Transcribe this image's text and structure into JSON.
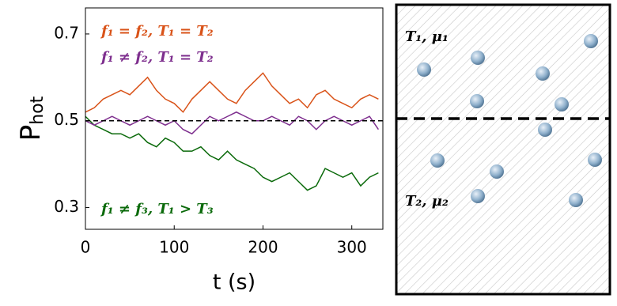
{
  "chart_data": {
    "type": "line",
    "xlabel": "t (s)",
    "ylabel_main": "P",
    "ylabel_sub": "hot",
    "x": [
      0,
      10,
      20,
      30,
      40,
      50,
      60,
      70,
      80,
      90,
      100,
      110,
      120,
      130,
      140,
      150,
      160,
      170,
      180,
      190,
      200,
      210,
      220,
      230,
      240,
      250,
      260,
      270,
      280,
      290,
      300,
      310,
      320,
      330
    ],
    "series": [
      {
        "name": "f₁ ≠ f₃, T₁ > T₃",
        "color": "#0b6a0b",
        "values": [
          0.51,
          0.49,
          0.48,
          0.47,
          0.47,
          0.46,
          0.47,
          0.45,
          0.44,
          0.46,
          0.45,
          0.43,
          0.43,
          0.44,
          0.42,
          0.41,
          0.43,
          0.41,
          0.4,
          0.39,
          0.37,
          0.36,
          0.37,
          0.38,
          0.36,
          0.34,
          0.35,
          0.39,
          0.38,
          0.37,
          0.38,
          0.35,
          0.37,
          0.38
        ]
      },
      {
        "name": "f₁ ≠ f₂, T₁ = T₂",
        "color": "#7e2f8e",
        "values": [
          0.5,
          0.49,
          0.5,
          0.51,
          0.5,
          0.49,
          0.5,
          0.51,
          0.5,
          0.49,
          0.5,
          0.48,
          0.47,
          0.49,
          0.51,
          0.5,
          0.51,
          0.52,
          0.51,
          0.5,
          0.5,
          0.51,
          0.5,
          0.49,
          0.51,
          0.5,
          0.48,
          0.5,
          0.51,
          0.5,
          0.49,
          0.5,
          0.51,
          0.48
        ]
      },
      {
        "name": "f₁ = f₂, T₁ = T₂",
        "color": "#d95319",
        "values": [
          0.52,
          0.53,
          0.55,
          0.56,
          0.57,
          0.56,
          0.58,
          0.6,
          0.57,
          0.55,
          0.54,
          0.52,
          0.55,
          0.57,
          0.59,
          0.57,
          0.55,
          0.54,
          0.57,
          0.59,
          0.61,
          0.58,
          0.56,
          0.54,
          0.55,
          0.53,
          0.56,
          0.57,
          0.55,
          0.54,
          0.53,
          0.55,
          0.56,
          0.55
        ]
      }
    ],
    "xlim": [
      0,
      335
    ],
    "xticks": [
      0,
      100,
      200,
      300
    ],
    "ylim": [
      0.25,
      0.76
    ],
    "yticks": [
      0.3,
      0.5,
      0.7
    ],
    "reference_line": 0.5
  },
  "diagram": {
    "top_label": "T₁, μ₁",
    "bottom_label": "T₂, μ₂"
  }
}
